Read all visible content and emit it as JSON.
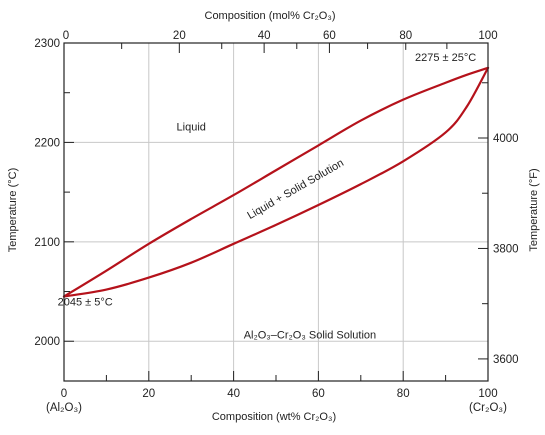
{
  "chart_data": {
    "type": "line",
    "x_axis_bottom": {
      "label": "Composition (wt% Cr₂O₃)",
      "range": [
        0,
        100
      ],
      "ticks": [
        0,
        20,
        40,
        60,
        80,
        100
      ],
      "end_labels": [
        "(Al₂O₃)",
        "(Cr₂O₃)"
      ]
    },
    "x_axis_top": {
      "label": "Composition (mol% Cr₂O₃)",
      "ticks": [
        0,
        20,
        40,
        60,
        80,
        100
      ],
      "tick_positions_wt": [
        0,
        27.2,
        47.2,
        62.6,
        80.6,
        100
      ]
    },
    "y_axis_left": {
      "label": "Temperature (°C)",
      "range": [
        1960,
        2300
      ],
      "ticks": [
        2000,
        2100,
        2200,
        2300
      ]
    },
    "y_axis_right": {
      "label": "Temperature (°F)",
      "ticks": [
        3600,
        3800,
        4000
      ]
    },
    "grid": true,
    "series": [
      {
        "name": "",
        "color": "#b5121b",
        "x": [
          0,
          10,
          20,
          30,
          40,
          50,
          60,
          70,
          80,
          90,
          95,
          100
        ],
        "y": [
          2045,
          2071,
          2098,
          2123,
          2147,
          2172,
          2197,
          2222,
          2243,
          2260,
          2268,
          2275
        ]
      },
      {
        "name": "",
        "color": "#b5121b",
        "x": [
          0,
          10,
          20,
          30,
          40,
          50,
          60,
          70,
          80,
          90,
          95,
          100
        ],
        "y": [
          2045,
          2052,
          2064,
          2079,
          2098,
          2117,
          2137,
          2158,
          2181,
          2210,
          2236,
          2275
        ]
      }
    ],
    "annotations": [
      {
        "text": "Liquid",
        "x": 30,
        "y": 2212
      },
      {
        "text": "Liquid + Solid Solution",
        "x": 55,
        "y": 2150,
        "rotate": -30
      },
      {
        "text": "Al₂O₃–Cr₂O₃ Solid Solution",
        "x": 58,
        "y": 2003
      },
      {
        "text": "2045 ± 5°C",
        "x": 5,
        "y": 2036
      },
      {
        "text": "2275 ± 25°C",
        "x": 90,
        "y": 2282
      }
    ]
  }
}
